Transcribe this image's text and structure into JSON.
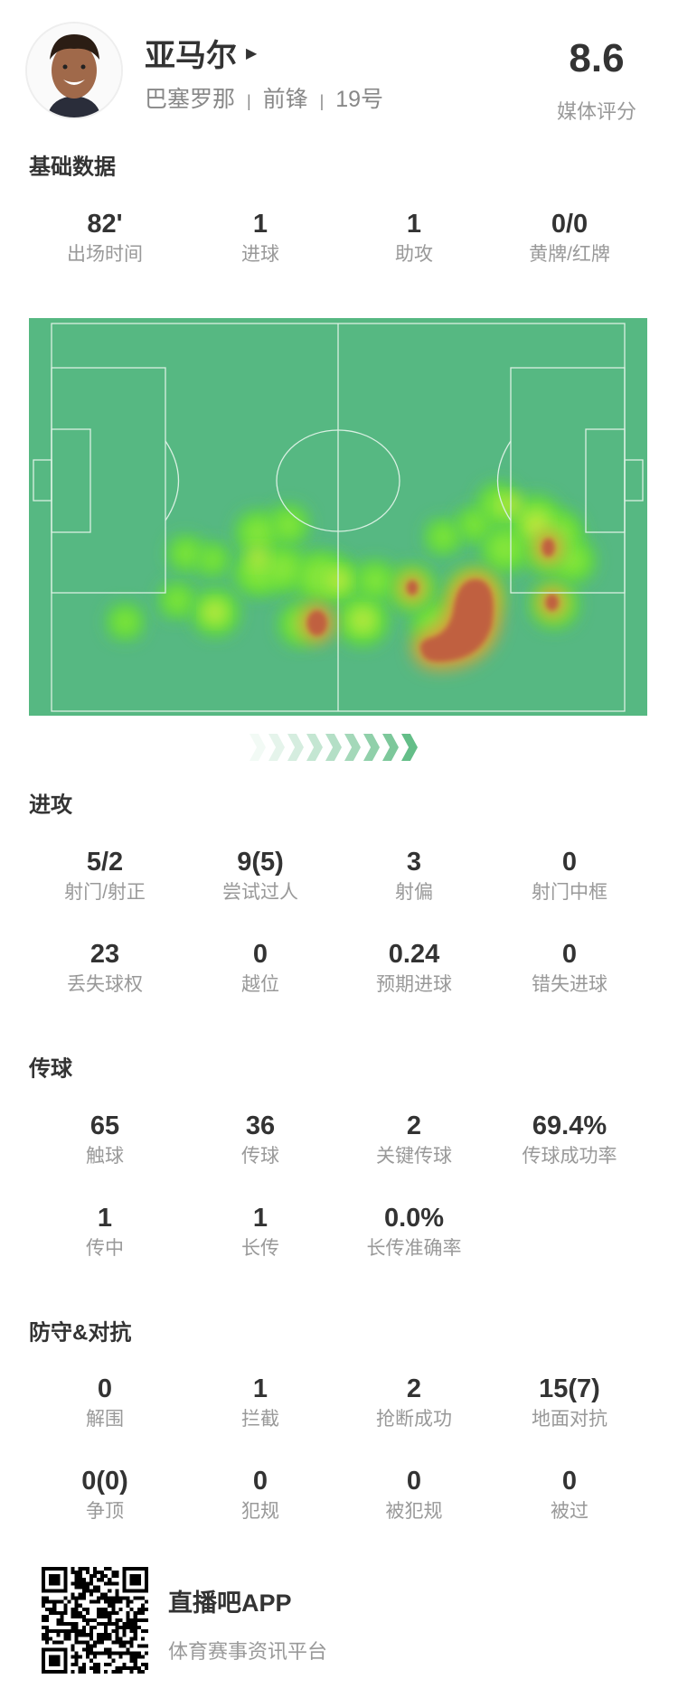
{
  "player": {
    "name": "亚马尔",
    "team": "巴塞罗那",
    "position": "前锋",
    "number": "19号",
    "separator": "|",
    "rating": "8.6",
    "rating_label": "媒体评分"
  },
  "sections": {
    "basic": {
      "title": "基础数据",
      "stats": [
        {
          "value": "82'",
          "label": "出场时间"
        },
        {
          "value": "1",
          "label": "进球"
        },
        {
          "value": "1",
          "label": "助攻"
        },
        {
          "value": "0/0",
          "label": "黄牌/红牌"
        }
      ]
    },
    "attack": {
      "title": "进攻",
      "stats": [
        {
          "value": "5/2",
          "label": "射门/射正"
        },
        {
          "value": "9(5)",
          "label": "尝试过人"
        },
        {
          "value": "3",
          "label": "射偏"
        },
        {
          "value": "0",
          "label": "射门中框"
        },
        {
          "value": "23",
          "label": "丢失球权"
        },
        {
          "value": "0",
          "label": "越位"
        },
        {
          "value": "0.24",
          "label": "预期进球"
        },
        {
          "value": "0",
          "label": "错失进球"
        }
      ]
    },
    "passing": {
      "title": "传球",
      "stats": [
        {
          "value": "65",
          "label": "触球"
        },
        {
          "value": "36",
          "label": "传球"
        },
        {
          "value": "2",
          "label": "关键传球"
        },
        {
          "value": "69.4%",
          "label": "传球成功率"
        },
        {
          "value": "1",
          "label": "传中"
        },
        {
          "value": "1",
          "label": "长传"
        },
        {
          "value": "0.0%",
          "label": "长传准确率"
        }
      ]
    },
    "defense": {
      "title": "防守&对抗",
      "stats": [
        {
          "value": "0",
          "label": "解围"
        },
        {
          "value": "1",
          "label": "拦截"
        },
        {
          "value": "2",
          "label": "抢断成功"
        },
        {
          "value": "15(7)",
          "label": "地面对抗"
        },
        {
          "value": "0(0)",
          "label": "争顶"
        },
        {
          "value": "0",
          "label": "犯规"
        },
        {
          "value": "0",
          "label": "被犯规"
        },
        {
          "value": "0",
          "label": "被过"
        }
      ]
    }
  },
  "heatmap": {
    "pitch_color": "#56b882",
    "line_color": "#d9f0e2",
    "attack_direction": "right"
  },
  "footer": {
    "app_name": "直播吧APP",
    "tagline": "体育赛事资讯平台",
    "qr_icon": "qr-code-icon"
  }
}
